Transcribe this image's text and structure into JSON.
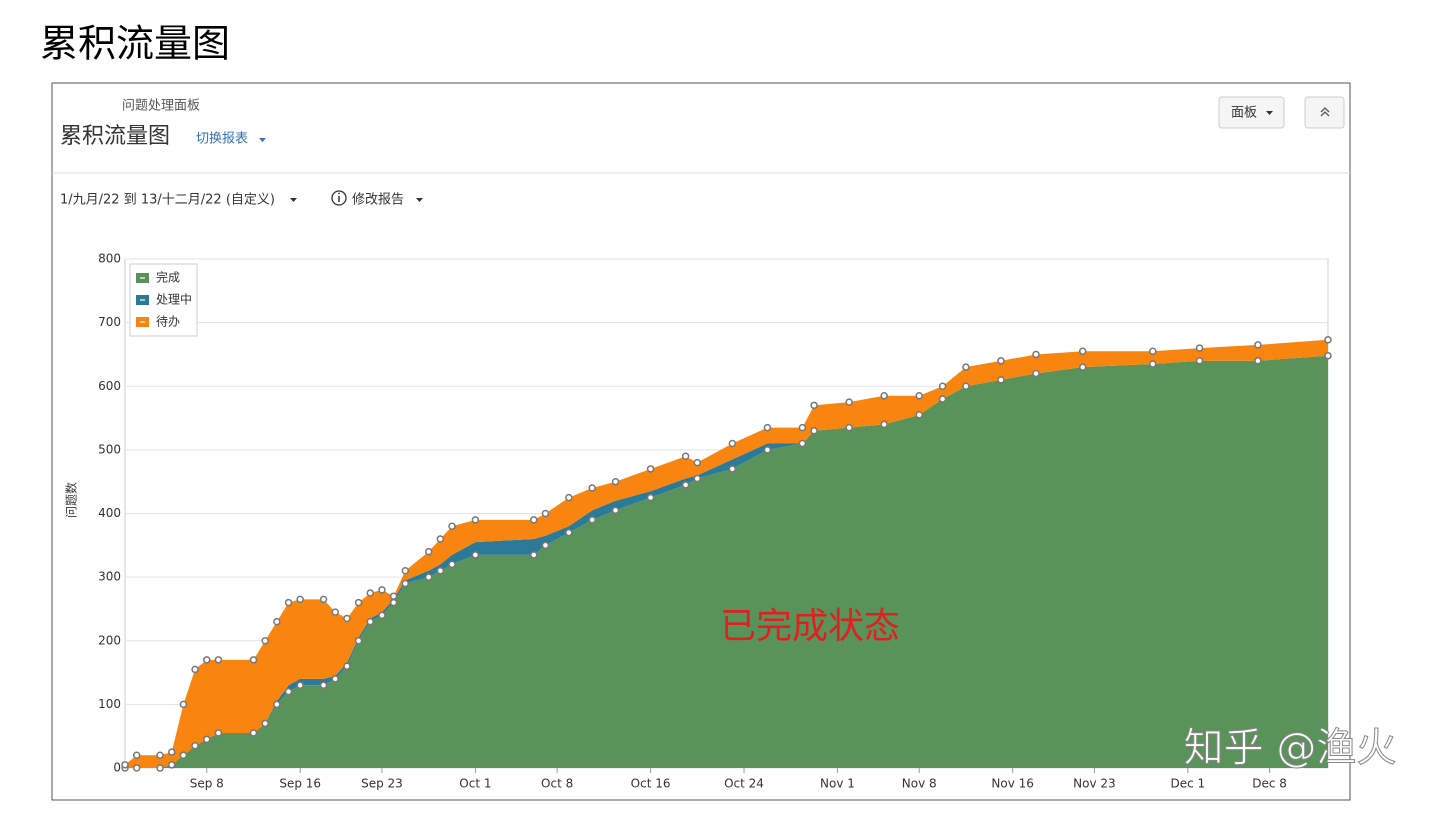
{
  "page_title": "累积流量图",
  "panel": {
    "breadcrumb": "问题处理面板",
    "title": "累积流量图",
    "switch": "切换报表",
    "date_range": "1/九月/22 到 13/十二月/22 (自定义)",
    "edit": "修改报告",
    "board_button": "面板"
  },
  "annotation": "已完成状态",
  "watermark": "知乎 @渔火",
  "chart_data": {
    "type": "stacked_area",
    "y_label": "问题数",
    "x": [
      0,
      1,
      3,
      4,
      5,
      6,
      7,
      8,
      11,
      12,
      13,
      14,
      15,
      17,
      18,
      19,
      20,
      21,
      22,
      23,
      24,
      26,
      27,
      28,
      30,
      35,
      36,
      38,
      40,
      42,
      45,
      48,
      49,
      52,
      55,
      58,
      59,
      62,
      65,
      68,
      70,
      72,
      75,
      78,
      82,
      88,
      92,
      97,
      103
    ],
    "series": [
      {
        "name": "完成",
        "color": "#59935a",
        "values": [
          0,
          0,
          0,
          5,
          20,
          35,
          45,
          55,
          55,
          70,
          100,
          120,
          130,
          130,
          140,
          160,
          200,
          230,
          240,
          260,
          290,
          300,
          310,
          320,
          335,
          335,
          350,
          370,
          390,
          405,
          425,
          445,
          455,
          470,
          500,
          510,
          530,
          535,
          540,
          555,
          580,
          600,
          610,
          620,
          630,
          635,
          640,
          640,
          648
        ]
      },
      {
        "name": "处理中",
        "color": "#2b7a98",
        "values": [
          0,
          0,
          0,
          0,
          0,
          0,
          0,
          0,
          0,
          0,
          5,
          10,
          10,
          10,
          5,
          5,
          5,
          5,
          5,
          5,
          5,
          10,
          10,
          15,
          20,
          25,
          15,
          10,
          15,
          15,
          10,
          10,
          5,
          15,
          10,
          0,
          0,
          0,
          0,
          0,
          0,
          0,
          0,
          0,
          0,
          0,
          0,
          0,
          0
        ]
      },
      {
        "name": "待办",
        "color": "#f7850f",
        "values": [
          5,
          20,
          20,
          20,
          80,
          120,
          125,
          115,
          115,
          130,
          125,
          130,
          125,
          125,
          100,
          70,
          55,
          40,
          35,
          5,
          15,
          30,
          40,
          45,
          35,
          30,
          35,
          45,
          35,
          30,
          35,
          35,
          20,
          25,
          25,
          25,
          40,
          40,
          45,
          30,
          20,
          30,
          30,
          30,
          25,
          20,
          20,
          25,
          25
        ]
      }
    ],
    "xlim": [
      0,
      103
    ],
    "xticks": [
      {
        "value": 7,
        "label": "Sep 8"
      },
      {
        "value": 15,
        "label": "Sep 16"
      },
      {
        "value": 22,
        "label": "Sep 23"
      },
      {
        "value": 30,
        "label": "Oct 1"
      },
      {
        "value": 37,
        "label": "Oct 8"
      },
      {
        "value": 45,
        "label": "Oct 16"
      },
      {
        "value": 53,
        "label": "Oct 24"
      },
      {
        "value": 61,
        "label": "Nov 1"
      },
      {
        "value": 68,
        "label": "Nov 8"
      },
      {
        "value": 76,
        "label": "Nov 16"
      },
      {
        "value": 83,
        "label": "Nov 23"
      },
      {
        "value": 91,
        "label": "Dec 1"
      },
      {
        "value": 98,
        "label": "Dec 8"
      }
    ],
    "ylim": [
      0,
      800
    ],
    "yticks": [
      0,
      100,
      200,
      300,
      400,
      500,
      600,
      700,
      800
    ],
    "grid": true,
    "legend": "top-left"
  }
}
